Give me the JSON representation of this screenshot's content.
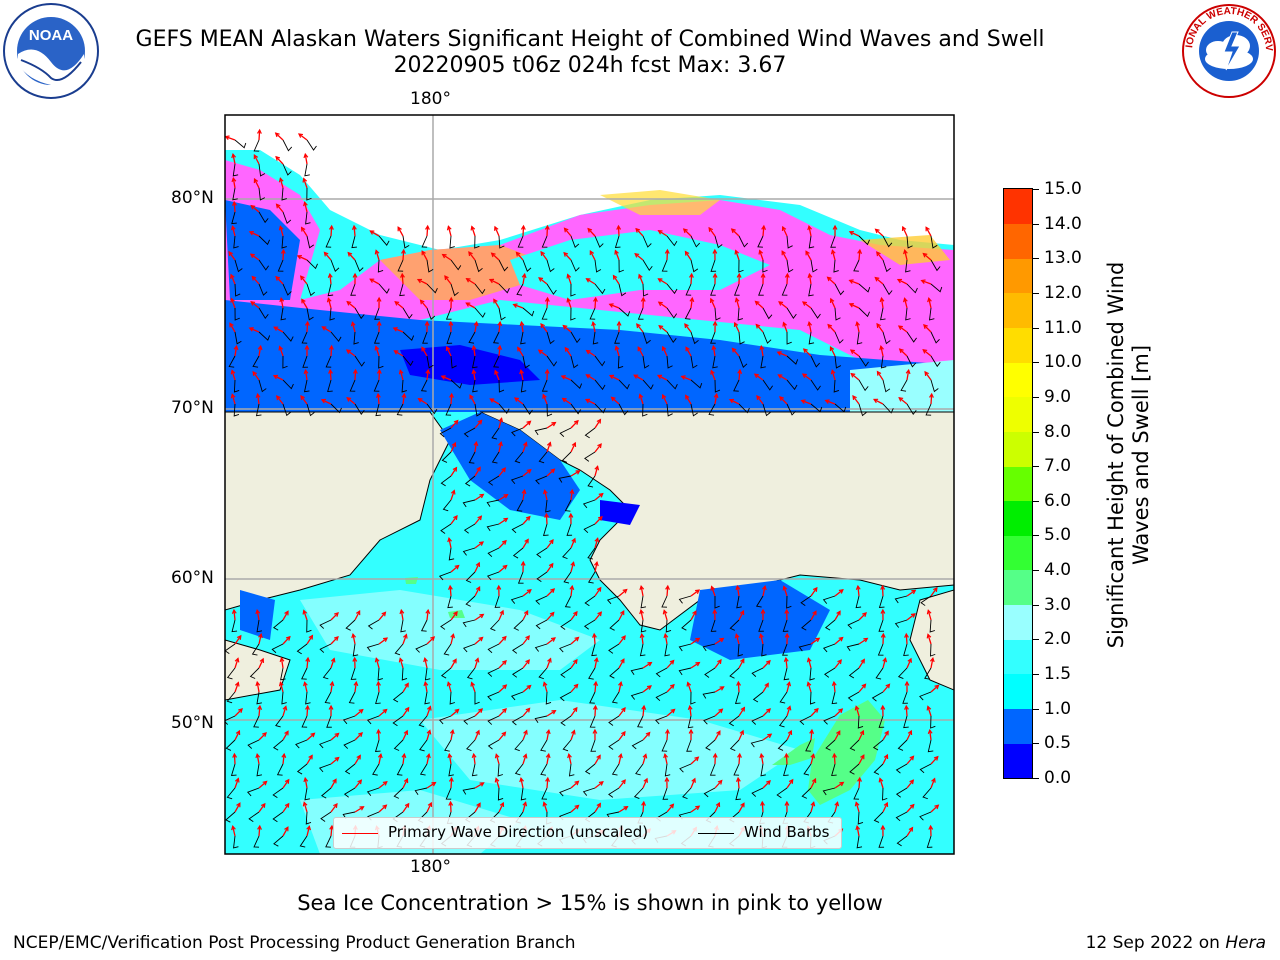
{
  "header": {
    "title": "GEFS MEAN Alaskan Waters Significant Height of Combined Wind Waves and Swell",
    "subtitle": "20220905 t06z 024h fcst   Max: 3.67"
  },
  "logos": {
    "left": {
      "icon": "noaa-logo",
      "text": "NOAA"
    },
    "right": {
      "icon": "nws-logo",
      "text": "NATIONAL WEATHER SERVICE"
    }
  },
  "map": {
    "lon_labels_top": [
      "180°"
    ],
    "lon_labels_bottom": [
      "180°"
    ],
    "lat_labels": [
      "80°N",
      "70°N",
      "60°N",
      "50°N"
    ],
    "colors": {
      "land": "#efefde",
      "ocean_base": "#33ffff",
      "ice": "#ff66ff",
      "barb": "#000000",
      "wave_arrow": "#ff0000"
    }
  },
  "legend": {
    "wave_label": "Primary Wave Direction (unscaled)",
    "barb_label": "Wind Barbs"
  },
  "colorbar": {
    "label": "Significant Height of Combined Wind Waves and Swell [m]",
    "ticks": [
      "0.0",
      "0.5",
      "1.0",
      "1.5",
      "2.0",
      "3.0",
      "4.0",
      "5.0",
      "6.0",
      "7.0",
      "8.0",
      "9.0",
      "10.0",
      "11.0",
      "12.0",
      "13.0",
      "14.0",
      "15.0"
    ],
    "colors": [
      "#0000ff",
      "#0066ff",
      "#00ffff",
      "#33ffff",
      "#99ffff",
      "#55ff88",
      "#33ff33",
      "#00ee00",
      "#66ff00",
      "#ccff00",
      "#eeff00",
      "#ffff00",
      "#ffdd00",
      "#ffbb00",
      "#ff9900",
      "#ff6600",
      "#ff3300"
    ]
  },
  "note": "Sea Ice Concentration > 15% is shown in pink to yellow",
  "footer": {
    "left": "NCEP/EMC/Verification Post Processing Product Generation Branch",
    "right_date": "12 Sep 2022 on ",
    "right_host": "Hera"
  }
}
